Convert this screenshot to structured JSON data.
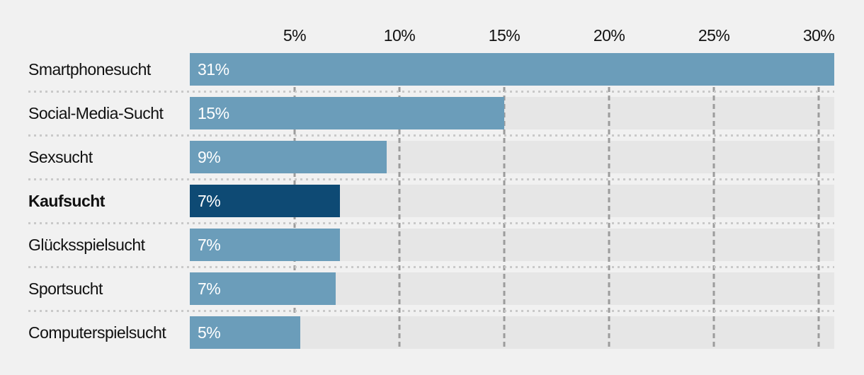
{
  "chart_data": {
    "type": "bar",
    "orientation": "horizontal",
    "categories": [
      "Smartphonesucht",
      "Social-Media-Sucht",
      "Sexsucht",
      "Kaufsucht",
      "Glücksspielsucht",
      "Sportsucht",
      "Computerspielsucht"
    ],
    "values": [
      31,
      15,
      9,
      7,
      7,
      7,
      5
    ],
    "value_labels": [
      "31%",
      "15%",
      "9%",
      "7%",
      "7%",
      "7%",
      "5%"
    ],
    "highlighted_category": "Kaufsucht",
    "bar_width_fractions": [
      1.0,
      0.488,
      0.305,
      0.233,
      0.233,
      0.226,
      0.171
    ],
    "axis": {
      "position": "top",
      "ticks": [
        "5%",
        "10%",
        "15%",
        "20%",
        "25%",
        "30%"
      ],
      "tick_values": [
        5,
        10,
        15,
        20,
        25,
        30
      ],
      "max": 30.74,
      "grid": true,
      "value_label_position": "inside-left"
    },
    "legend": null,
    "colors": {
      "background": "#f1f1f1",
      "bar": "#6b9dba",
      "highlight_bar": "#0e4a74",
      "track": "#e6e6e6",
      "gridline": "#9c9c9c",
      "separator": "#c9c9c9",
      "category_text": "#111111",
      "value_text": "#ffffff"
    }
  }
}
